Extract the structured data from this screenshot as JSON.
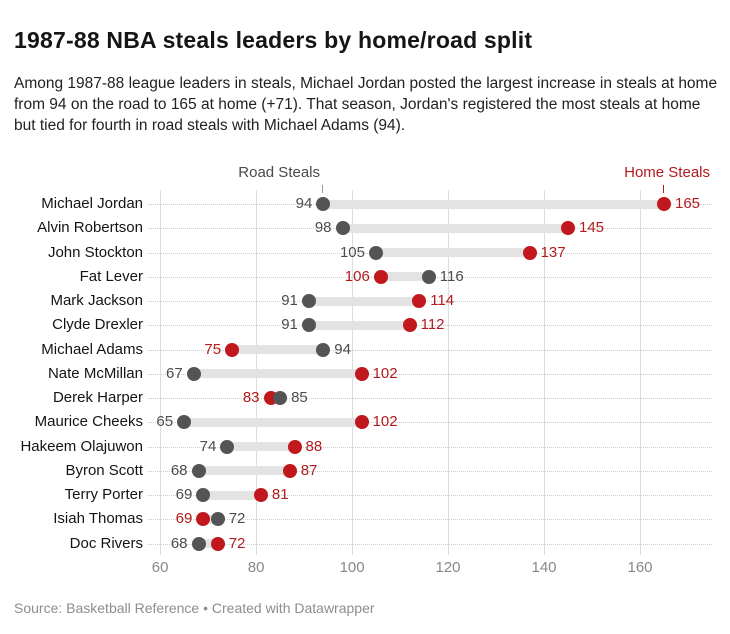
{
  "title": "1987-88 NBA steals leaders by home/road split",
  "description": "Among 1987-88 league leaders in steals, Michael Jordan posted the largest increase in steals at home from 94 on the road to 165 at home (+71). That season, Jordan's registered the most steals at home but tied for fourth in road steals with Michael Adams (94).",
  "footer": "Source: Basketball Reference • Created with Datawrapper",
  "colors": {
    "home_accent": "#c0181c",
    "home_text": "#b31a1c",
    "road_dot": "#545457",
    "road_text": "#4c4c4c",
    "connector": "#e3e3e3",
    "gridline": "#dcdcdc",
    "axis_text": "#888888"
  },
  "chart_data": {
    "type": "dumbbell",
    "orientation": "horizontal",
    "title": "1987-88 NBA steals leaders by home/road split",
    "xlabel": "",
    "ylabel": "",
    "x_ticks": [
      60,
      80,
      100,
      120,
      140,
      160
    ],
    "x_domain": [
      57.9,
      175
    ],
    "grid": "vertical-solid-plus-dotted-row-guides",
    "legend_position": "top-column-headers",
    "column_headers": {
      "road": "Road Steals",
      "home": "Home Steals"
    },
    "players": [
      {
        "name": "Michael Jordan",
        "road": 94,
        "home": 165
      },
      {
        "name": "Alvin Robertson",
        "road": 98,
        "home": 145
      },
      {
        "name": "John Stockton",
        "road": 105,
        "home": 137
      },
      {
        "name": "Fat Lever",
        "road": 116,
        "home": 106
      },
      {
        "name": "Mark Jackson",
        "road": 91,
        "home": 114
      },
      {
        "name": "Clyde Drexler",
        "road": 91,
        "home": 112
      },
      {
        "name": "Michael Adams",
        "road": 94,
        "home": 75
      },
      {
        "name": "Nate McMillan",
        "road": 67,
        "home": 102
      },
      {
        "name": "Derek Harper",
        "road": 85,
        "home": 83
      },
      {
        "name": "Maurice Cheeks",
        "road": 65,
        "home": 102
      },
      {
        "name": "Hakeem Olajuwon",
        "road": 74,
        "home": 88
      },
      {
        "name": "Byron Scott",
        "road": 68,
        "home": 87
      },
      {
        "name": "Terry Porter",
        "road": 69,
        "home": 81
      },
      {
        "name": "Isiah Thomas",
        "road": 72,
        "home": 69
      },
      {
        "name": "Doc Rivers",
        "road": 68,
        "home": 72
      }
    ]
  }
}
